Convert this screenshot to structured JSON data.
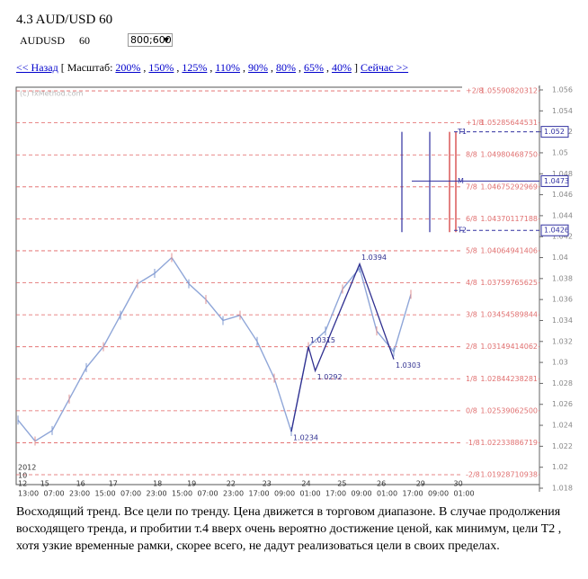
{
  "header": {
    "title": "4.3 AUD/USD 60",
    "symbol": "AUDUSD",
    "period": "60",
    "select": "800;600"
  },
  "nav": {
    "back": "<< Назад",
    "open": "[ Масштаб:",
    "scales": [
      "200%",
      "150%",
      "125%",
      "110%",
      "90%",
      "80%",
      "65%",
      "40%"
    ],
    "separator": ",",
    "close": "]",
    "forward": "Сейчас >>"
  },
  "chart": {
    "type": "line",
    "watermark": "(c) fxMethod.com",
    "year": "2012",
    "month": "10",
    "ylim": [
      1.018,
      1.056
    ],
    "yticks": [
      1.018,
      1.02,
      1.022,
      1.024,
      1.026,
      1.028,
      1.03,
      1.032,
      1.034,
      1.036,
      1.038,
      1.04,
      1.042,
      1.044,
      1.046,
      1.048,
      1.05,
      1.052,
      1.054,
      1.056
    ],
    "price": [
      1.0245,
      1.0225,
      1.0235,
      1.0265,
      1.0295,
      1.0315,
      1.0345,
      1.0375,
      1.0385,
      1.04,
      1.0375,
      1.036,
      1.034,
      1.0345,
      1.032,
      1.0285,
      1.0234,
      1.0315,
      1.033,
      1.037,
      1.039,
      1.033,
      1.031,
      1.0365
    ],
    "levels": [
      {
        "name": "+2/8",
        "value": 1.05590820312,
        "label": "1.05590820312"
      },
      {
        "name": "+1/8",
        "value": 1.05285644531,
        "label": "1.05285644531"
      },
      {
        "name": "8/8",
        "value": 1.0498046875,
        "label": "1.04980468750"
      },
      {
        "name": "7/8",
        "value": 1.04675292969,
        "label": "1.04675292969"
      },
      {
        "name": "6/8",
        "value": 1.04370117188,
        "label": "1.04370117188"
      },
      {
        "name": "5/8",
        "value": 1.04064941406,
        "label": "1.04064941406"
      },
      {
        "name": "4/8",
        "value": 1.03759765625,
        "label": "1.03759765625"
      },
      {
        "name": "3/8",
        "value": 1.03454589844,
        "label": "1.03454589844"
      },
      {
        "name": "2/8",
        "value": 1.03149414062,
        "label": "1.03149414062"
      },
      {
        "name": "1/8",
        "value": 1.02844238281,
        "label": "1.02844238281"
      },
      {
        "name": "0/8",
        "value": 1.025390625,
        "label": "1.02539062500"
      },
      {
        "name": "-1/8",
        "value": 1.02233886719,
        "label": "1.02233886719"
      },
      {
        "name": "-2/8",
        "value": 1.01928710938,
        "label": "1.01928710938"
      }
    ],
    "targets": [
      {
        "name": "T1",
        "value": 1.052
      },
      {
        "name": "M",
        "value": 1.0473
      },
      {
        "name": "T2",
        "value": 1.0426
      }
    ],
    "zigzag": {
      "x": [
        16,
        17,
        17.4,
        20,
        22
      ],
      "values": [
        1.0234,
        1.0315,
        1.0292,
        1.0394,
        1.0303
      ]
    },
    "days": {
      "x": [
        0,
        1.3,
        3.4,
        5.3,
        7.9,
        9.9,
        12.2,
        14.3,
        16.6,
        18.7,
        21,
        23.3,
        25.5
      ],
      "labels": [
        "12",
        "15",
        "16",
        "17",
        "18",
        "19",
        "22",
        "23",
        "24",
        "25",
        "26",
        "29",
        "30"
      ]
    },
    "times": [
      "13:00",
      "07:00",
      "23:00",
      "15:00",
      "07:00",
      "23:00",
      "15:00",
      "07:00",
      "23:00",
      "17:00",
      "09:00",
      "01:00",
      "17:00",
      "09:00",
      "01:00",
      "17:00",
      "09:00",
      "01:00"
    ]
  },
  "description": "Восходящий тренд. Все цели по тренду. Цена движется в торговом диапазоне. В случае продолжения восходящего  тренда, и пробитии т.4 вверх очень вероятно достижение ценой, как минимум, цели Т2 , хотя узкие временные рамки, скорее всего, не дадут реализоваться цели в своих пределах."
}
